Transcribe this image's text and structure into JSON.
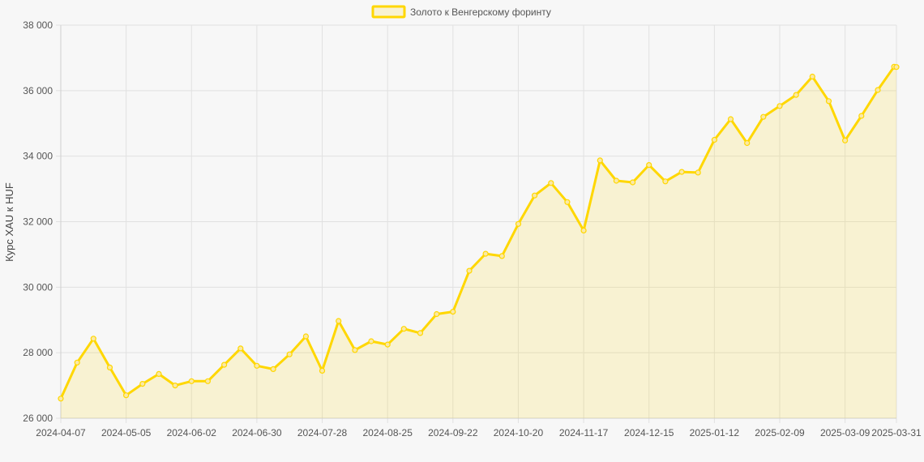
{
  "colors": {
    "line": "#FFD700",
    "fill": "#FFD700",
    "grid": "#e1e1e1",
    "axis_text": "#555555",
    "background": "#f7f7f7"
  },
  "chart_data": {
    "type": "area",
    "title": "",
    "xlabel": "",
    "ylabel": "Курс XAU к HUF",
    "legend": {
      "position": "top-center"
    },
    "grid": true,
    "ylim": [
      26000,
      38000
    ],
    "yticks": [
      26000,
      28000,
      30000,
      32000,
      34000,
      36000,
      38000
    ],
    "ytick_labels": [
      "26 000",
      "28 000",
      "30 000",
      "32 000",
      "34 000",
      "36 000",
      "38 000"
    ],
    "xtick_labels": [
      "2024-04-07",
      "2024-05-05",
      "2024-06-02",
      "2024-06-30",
      "2024-07-28",
      "2024-08-25",
      "2024-09-22",
      "2024-10-20",
      "2024-11-17",
      "2024-12-15",
      "2025-01-12",
      "2025-02-09",
      "2025-03-09",
      "2025-03-31"
    ],
    "x": [
      "2024-04-07",
      "2024-04-14",
      "2024-04-21",
      "2024-04-28",
      "2024-05-05",
      "2024-05-12",
      "2024-05-19",
      "2024-05-26",
      "2024-06-02",
      "2024-06-09",
      "2024-06-16",
      "2024-06-23",
      "2024-06-30",
      "2024-07-07",
      "2024-07-14",
      "2024-07-21",
      "2024-07-28",
      "2024-08-04",
      "2024-08-11",
      "2024-08-18",
      "2024-08-25",
      "2024-09-01",
      "2024-09-08",
      "2024-09-15",
      "2024-09-22",
      "2024-09-29",
      "2024-10-06",
      "2024-10-13",
      "2024-10-20",
      "2024-10-27",
      "2024-11-03",
      "2024-11-10",
      "2024-11-17",
      "2024-11-24",
      "2024-12-01",
      "2024-12-08",
      "2024-12-15",
      "2024-12-22",
      "2024-12-29",
      "2025-01-05",
      "2025-01-12",
      "2025-01-19",
      "2025-01-26",
      "2025-02-02",
      "2025-02-09",
      "2025-02-16",
      "2025-02-23",
      "2025-03-02",
      "2025-03-09",
      "2025-03-16",
      "2025-03-23",
      "2025-03-30",
      "2025-03-31"
    ],
    "series": [
      {
        "name": "Золото к Венгерскому форинту",
        "values": [
          26600,
          27700,
          28430,
          27550,
          26700,
          27050,
          27350,
          27000,
          27130,
          27130,
          27630,
          28130,
          27600,
          27500,
          27950,
          28500,
          27450,
          28970,
          28080,
          28350,
          28250,
          28730,
          28600,
          29180,
          29250,
          30500,
          31020,
          30950,
          31930,
          32800,
          33180,
          32600,
          31730,
          33870,
          33250,
          33200,
          33730,
          33230,
          33520,
          33500,
          34500,
          35130,
          34400,
          35200,
          35530,
          35870,
          36430,
          35680,
          34480,
          35230,
          36020,
          36730,
          36720
        ]
      }
    ]
  }
}
